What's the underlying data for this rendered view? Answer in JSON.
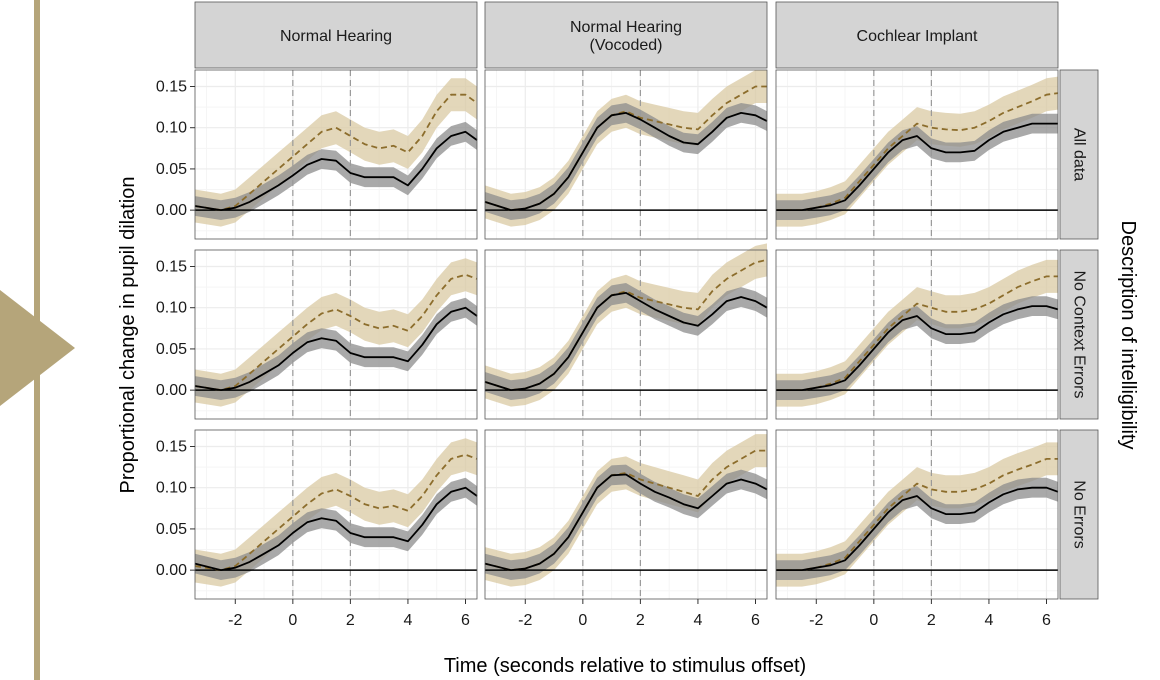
{
  "colors": {
    "accent": "#b5a57a",
    "intelligible_line": "#8c6d2c",
    "intelligible_band": "#d9c9a3",
    "unintelligible_line": "#000000",
    "unintelligible_band": "#8c8c8c",
    "strip_bg": "#d4d4d4",
    "grid_major": "#ececec",
    "grid_minor": "#f5f5f5",
    "panel_border": "#555555"
  },
  "chart_data": {
    "type": "line",
    "xlabel": "Time (seconds relative to stimulus offset)",
    "ylabel": "Proportional change in pupil dilation",
    "right_label": "Description of intelligibility",
    "columns": [
      "Normal Hearing",
      "Normal Hearing\n(Vocoded)",
      "Cochlear Implant"
    ],
    "rows": [
      "All data",
      "No Context Errors",
      "No Errors"
    ],
    "xlim": [
      -3.4,
      6.4
    ],
    "ylim": [
      -0.035,
      0.17
    ],
    "x_ticks": [
      -2,
      0,
      2,
      4,
      6
    ],
    "x_tick_labels": [
      "-2",
      "0",
      "2",
      "4",
      "6"
    ],
    "y_ticks": [
      0,
      0.05,
      0.1,
      0.15
    ],
    "y_tick_labels": [
      "0.00",
      "0.05",
      "0.10",
      "0.15"
    ],
    "reference_lines_x": [
      0,
      2
    ],
    "grid": true,
    "series_styles": [
      {
        "line": "dashed",
        "color": "#8c6d2c",
        "band": "#d9c9a3"
      },
      {
        "line": "solid",
        "color": "#000000",
        "band": "#8c8c8c"
      }
    ],
    "panels": [
      {
        "column": 0,
        "row": 0,
        "series": [
          {
            "style": 0,
            "band": 0.02,
            "x": [
              -3.4,
              -2.5,
              -2,
              -1.5,
              -1,
              -0.5,
              0,
              0.5,
              1,
              1.5,
              2,
              2.5,
              3,
              3.5,
              4,
              4.5,
              5,
              5.5,
              6,
              6.4
            ],
            "y": [
              0.005,
              0,
              0.005,
              0.02,
              0.035,
              0.05,
              0.065,
              0.08,
              0.095,
              0.1,
              0.09,
              0.08,
              0.075,
              0.078,
              0.07,
              0.09,
              0.12,
              0.14,
              0.14,
              0.13
            ]
          },
          {
            "style": 1,
            "band": 0.012,
            "x": [
              -3.4,
              -2.5,
              -2,
              -1.5,
              -1,
              -0.5,
              0,
              0.5,
              1,
              1.5,
              2,
              2.5,
              3,
              3.5,
              4,
              4.5,
              5,
              5.5,
              6,
              6.4
            ],
            "y": [
              0.005,
              0,
              0.003,
              0.01,
              0.02,
              0.03,
              0.042,
              0.055,
              0.062,
              0.06,
              0.045,
              0.04,
              0.04,
              0.04,
              0.03,
              0.05,
              0.075,
              0.09,
              0.095,
              0.085
            ]
          }
        ]
      },
      {
        "column": 1,
        "row": 0,
        "series": [
          {
            "style": 0,
            "band": 0.02,
            "x": [
              -3.4,
              -2.5,
              -2,
              -1.5,
              -1,
              -0.5,
              0,
              0.5,
              1,
              1.5,
              2,
              2.5,
              3,
              3.5,
              4,
              4.5,
              5,
              5.5,
              6,
              6.4
            ],
            "y": [
              0.01,
              0,
              0.002,
              0.008,
              0.02,
              0.04,
              0.07,
              0.1,
              0.115,
              0.12,
              0.112,
              0.108,
              0.104,
              0.1,
              0.098,
              0.115,
              0.13,
              0.14,
              0.15,
              0.15
            ]
          },
          {
            "style": 1,
            "band": 0.012,
            "x": [
              -3.4,
              -2.5,
              -2,
              -1.5,
              -1,
              -0.5,
              0,
              0.5,
              1,
              1.5,
              2,
              2.5,
              3,
              3.5,
              4,
              4.5,
              5,
              5.5,
              6,
              6.4
            ],
            "y": [
              0.01,
              0,
              0.002,
              0.008,
              0.02,
              0.04,
              0.07,
              0.1,
              0.115,
              0.118,
              0.11,
              0.1,
              0.09,
              0.082,
              0.08,
              0.095,
              0.112,
              0.118,
              0.115,
              0.108
            ]
          }
        ]
      },
      {
        "column": 2,
        "row": 0,
        "series": [
          {
            "style": 0,
            "band": 0.02,
            "x": [
              -3.4,
              -2.5,
              -2,
              -1.5,
              -1,
              -0.5,
              0,
              0.5,
              1,
              1.5,
              2,
              2.5,
              3,
              3.5,
              4,
              4.5,
              5,
              5.5,
              6,
              6.4
            ],
            "y": [
              0,
              0,
              0.003,
              0.008,
              0.015,
              0.035,
              0.055,
              0.075,
              0.09,
              0.105,
              0.1,
              0.098,
              0.097,
              0.1,
              0.108,
              0.118,
              0.125,
              0.132,
              0.14,
              0.142
            ]
          },
          {
            "style": 1,
            "band": 0.012,
            "x": [
              -3.4,
              -2.5,
              -2,
              -1.5,
              -1,
              -0.5,
              0,
              0.5,
              1,
              1.5,
              2,
              2.5,
              3,
              3.5,
              4,
              4.5,
              5,
              5.5,
              6,
              6.4
            ],
            "y": [
              0,
              0,
              0.003,
              0.006,
              0.012,
              0.03,
              0.05,
              0.07,
              0.085,
              0.09,
              0.075,
              0.07,
              0.07,
              0.072,
              0.085,
              0.095,
              0.1,
              0.105,
              0.105,
              0.105
            ]
          }
        ]
      },
      {
        "column": 0,
        "row": 1,
        "series": [
          {
            "style": 0,
            "band": 0.02,
            "x": [
              -3.4,
              -2.5,
              -2,
              -1.5,
              -1,
              -0.5,
              0,
              0.5,
              1,
              1.5,
              2,
              2.5,
              3,
              3.5,
              4,
              4.5,
              5,
              5.5,
              6,
              6.4
            ],
            "y": [
              0.005,
              0,
              0.005,
              0.02,
              0.035,
              0.05,
              0.065,
              0.08,
              0.093,
              0.098,
              0.09,
              0.08,
              0.075,
              0.078,
              0.072,
              0.09,
              0.115,
              0.135,
              0.14,
              0.135
            ]
          },
          {
            "style": 1,
            "band": 0.012,
            "x": [
              -3.4,
              -2.5,
              -2,
              -1.5,
              -1,
              -0.5,
              0,
              0.5,
              1,
              1.5,
              2,
              2.5,
              3,
              3.5,
              4,
              4.5,
              5,
              5.5,
              6,
              6.4
            ],
            "y": [
              0.005,
              0,
              0.003,
              0.01,
              0.02,
              0.03,
              0.045,
              0.058,
              0.063,
              0.06,
              0.045,
              0.04,
              0.04,
              0.04,
              0.035,
              0.055,
              0.08,
              0.095,
              0.1,
              0.09
            ]
          }
        ]
      },
      {
        "column": 1,
        "row": 1,
        "series": [
          {
            "style": 0,
            "band": 0.02,
            "x": [
              -3.4,
              -2.5,
              -2,
              -1.5,
              -1,
              -0.5,
              0,
              0.5,
              1,
              1.5,
              2,
              2.5,
              3,
              3.5,
              4,
              4.5,
              5,
              5.5,
              6,
              6.4
            ],
            "y": [
              0.01,
              0,
              0.002,
              0.008,
              0.02,
              0.04,
              0.07,
              0.1,
              0.115,
              0.12,
              0.112,
              0.108,
              0.104,
              0.1,
              0.098,
              0.12,
              0.135,
              0.145,
              0.155,
              0.158
            ]
          },
          {
            "style": 1,
            "band": 0.012,
            "x": [
              -3.4,
              -2.5,
              -2,
              -1.5,
              -1,
              -0.5,
              0,
              0.5,
              1,
              1.5,
              2,
              2.5,
              3,
              3.5,
              4,
              4.5,
              5,
              5.5,
              6,
              6.4
            ],
            "y": [
              0.01,
              0,
              0.002,
              0.008,
              0.02,
              0.04,
              0.07,
              0.1,
              0.115,
              0.118,
              0.108,
              0.098,
              0.09,
              0.082,
              0.078,
              0.092,
              0.108,
              0.113,
              0.108,
              0.1
            ]
          }
        ]
      },
      {
        "column": 2,
        "row": 1,
        "series": [
          {
            "style": 0,
            "band": 0.02,
            "x": [
              -3.4,
              -2.5,
              -2,
              -1.5,
              -1,
              -0.5,
              0,
              0.5,
              1,
              1.5,
              2,
              2.5,
              3,
              3.5,
              4,
              4.5,
              5,
              5.5,
              6,
              6.4
            ],
            "y": [
              0,
              0,
              0.003,
              0.008,
              0.015,
              0.035,
              0.055,
              0.075,
              0.09,
              0.105,
              0.1,
              0.095,
              0.095,
              0.098,
              0.105,
              0.115,
              0.125,
              0.132,
              0.138,
              0.138
            ]
          },
          {
            "style": 1,
            "band": 0.012,
            "x": [
              -3.4,
              -2.5,
              -2,
              -1.5,
              -1,
              -0.5,
              0,
              0.5,
              1,
              1.5,
              2,
              2.5,
              3,
              3.5,
              4,
              4.5,
              5,
              5.5,
              6,
              6.4
            ],
            "y": [
              0,
              0,
              0.003,
              0.006,
              0.012,
              0.03,
              0.05,
              0.07,
              0.085,
              0.09,
              0.075,
              0.068,
              0.068,
              0.07,
              0.082,
              0.092,
              0.098,
              0.102,
              0.102,
              0.098
            ]
          }
        ]
      },
      {
        "column": 0,
        "row": 2,
        "series": [
          {
            "style": 0,
            "band": 0.02,
            "x": [
              -3.4,
              -2.5,
              -2,
              -1.5,
              -1,
              -0.5,
              0,
              0.5,
              1,
              1.5,
              2,
              2.5,
              3,
              3.5,
              4,
              4.5,
              5,
              5.5,
              6,
              6.4
            ],
            "y": [
              0.005,
              0,
              0.005,
              0.02,
              0.035,
              0.05,
              0.065,
              0.08,
              0.093,
              0.098,
              0.09,
              0.08,
              0.075,
              0.078,
              0.072,
              0.09,
              0.115,
              0.135,
              0.14,
              0.135
            ]
          },
          {
            "style": 1,
            "band": 0.012,
            "x": [
              -3.4,
              -2.5,
              -2,
              -1.5,
              -1,
              -0.5,
              0,
              0.5,
              1,
              1.5,
              2,
              2.5,
              3,
              3.5,
              4,
              4.5,
              5,
              5.5,
              6,
              6.4
            ],
            "y": [
              0.008,
              0,
              0.003,
              0.01,
              0.02,
              0.03,
              0.045,
              0.058,
              0.063,
              0.06,
              0.045,
              0.04,
              0.04,
              0.04,
              0.035,
              0.055,
              0.08,
              0.095,
              0.1,
              0.09
            ]
          }
        ]
      },
      {
        "column": 1,
        "row": 2,
        "series": [
          {
            "style": 0,
            "band": 0.02,
            "x": [
              -3.4,
              -2.5,
              -2,
              -1.5,
              -1,
              -0.5,
              0,
              0.5,
              1,
              1.5,
              2,
              2.5,
              3,
              3.5,
              4,
              4.5,
              5,
              5.5,
              6,
              6.4
            ],
            "y": [
              0.008,
              0,
              0.002,
              0.008,
              0.02,
              0.04,
              0.07,
              0.1,
              0.115,
              0.118,
              0.11,
              0.105,
              0.1,
              0.095,
              0.09,
              0.11,
              0.125,
              0.135,
              0.145,
              0.145
            ]
          },
          {
            "style": 1,
            "band": 0.012,
            "x": [
              -3.4,
              -2.5,
              -2,
              -1.5,
              -1,
              -0.5,
              0,
              0.5,
              1,
              1.5,
              2,
              2.5,
              3,
              3.5,
              4,
              4.5,
              5,
              5.5,
              6,
              6.4
            ],
            "y": [
              0.008,
              0,
              0.002,
              0.008,
              0.02,
              0.04,
              0.07,
              0.1,
              0.115,
              0.116,
              0.105,
              0.095,
              0.088,
              0.08,
              0.075,
              0.09,
              0.105,
              0.11,
              0.105,
              0.098
            ]
          }
        ]
      },
      {
        "column": 2,
        "row": 2,
        "series": [
          {
            "style": 0,
            "band": 0.02,
            "x": [
              -3.4,
              -2.5,
              -2,
              -1.5,
              -1,
              -0.5,
              0,
              0.5,
              1,
              1.5,
              2,
              2.5,
              3,
              3.5,
              4,
              4.5,
              5,
              5.5,
              6,
              6.4
            ],
            "y": [
              0,
              0,
              0.003,
              0.008,
              0.015,
              0.035,
              0.055,
              0.075,
              0.09,
              0.105,
              0.098,
              0.095,
              0.095,
              0.098,
              0.105,
              0.115,
              0.122,
              0.128,
              0.135,
              0.135
            ]
          },
          {
            "style": 1,
            "band": 0.012,
            "x": [
              -3.4,
              -2.5,
              -2,
              -1.5,
              -1,
              -0.5,
              0,
              0.5,
              1,
              1.5,
              2,
              2.5,
              3,
              3.5,
              4,
              4.5,
              5,
              5.5,
              6,
              6.4
            ],
            "y": [
              0,
              0,
              0.003,
              0.006,
              0.012,
              0.03,
              0.05,
              0.07,
              0.085,
              0.09,
              0.075,
              0.068,
              0.068,
              0.07,
              0.082,
              0.092,
              0.098,
              0.1,
              0.1,
              0.095
            ]
          }
        ]
      }
    ]
  }
}
